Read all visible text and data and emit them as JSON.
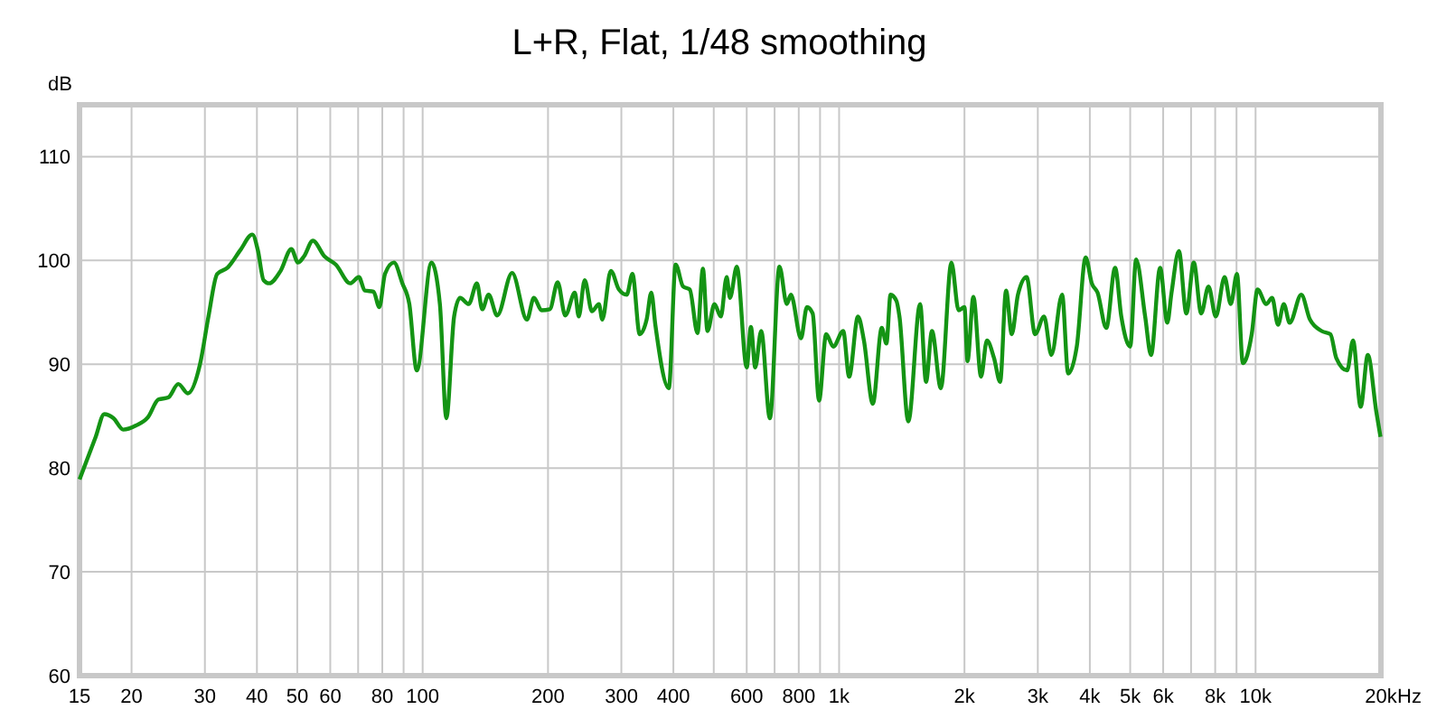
{
  "chart_data": {
    "type": "line",
    "title": "L+R, Flat, 1/48 smoothing",
    "ylabel": "dB",
    "xlabel": "Hz",
    "log": "x",
    "grid": true,
    "marker": "none",
    "line_style": "solid",
    "xlim": [
      15,
      20000
    ],
    "ylim": [
      60,
      115
    ],
    "xticks": [
      15,
      20,
      30,
      40,
      50,
      60,
      {
        "value": 70,
        "label": null
      },
      80,
      {
        "value": 90,
        "label": null
      },
      100,
      200,
      300,
      400,
      {
        "value": 500,
        "label": null
      },
      600,
      {
        "value": 700,
        "label": null
      },
      800,
      {
        "value": 900,
        "label": null
      },
      {
        "value": 1000,
        "label": "1k"
      },
      {
        "value": 2000,
        "label": "2k"
      },
      {
        "value": 3000,
        "label": "3k"
      },
      {
        "value": 4000,
        "label": "4k"
      },
      {
        "value": 5000,
        "label": "5k"
      },
      {
        "value": 6000,
        "label": "6k"
      },
      {
        "value": 7000,
        "label": null
      },
      {
        "value": 8000,
        "label": "8k"
      },
      {
        "value": 9000,
        "label": null
      },
      {
        "value": 10000,
        "label": "10k"
      },
      {
        "value": 20000,
        "label": "20k"
      }
    ],
    "yticks": [
      60,
      70,
      80,
      90,
      100,
      110
    ],
    "series": [
      {
        "color": "#149414",
        "x": [
          15,
          16.4,
          17.2,
          18.1,
          19.1,
          20.5,
          21.9,
          23.2,
          24.5,
          25.9,
          27.3,
          29.2,
          30.6,
          32.1,
          34,
          36.5,
          39,
          40.2,
          41.5,
          42.8,
          45.6,
          48.4,
          50.2,
          51.9,
          54.5,
          58.1,
          61.9,
          67,
          70.3,
          72.6,
          76.2,
          78.7,
          81.2,
          85.3,
          89.4,
          92.9,
          96.8,
          105,
          110,
          114,
          119,
          123,
          129,
          135,
          139,
          144,
          151,
          164,
          178,
          185,
          193,
          202,
          211,
          220,
          232,
          237,
          245,
          255,
          265,
          270,
          283,
          296,
          309,
          319,
          332,
          345,
          354,
          362,
          390,
          405,
          422,
          438,
          457,
          471,
          483,
          502,
          520,
          537,
          547,
          568,
          600,
          614,
          629,
          650,
          682,
          719,
          749,
          766,
          810,
          837,
          864,
          895,
          931,
          968,
          1023,
          1057,
          1110,
          1147,
          1205,
          1266,
          1299,
          1329,
          1373,
          1396,
          1466,
          1565,
          1617,
          1671,
          1755,
          1861,
          1936,
          2000,
          2034,
          2101,
          2192,
          2264,
          2355,
          2436,
          2517,
          2598,
          2688,
          2820,
          2955,
          3106,
          3234,
          3432,
          3548,
          3721,
          3909,
          4043,
          4175,
          4381,
          4600,
          4760,
          5000,
          5166,
          5431,
          5610,
          5899,
          6138,
          6284,
          6545,
          6821,
          7107,
          7403,
          7710,
          8027,
          8426,
          8719,
          9023,
          9322,
          9790,
          10110,
          10613,
          10961,
          11320,
          11691,
          12074,
          12877,
          13510,
          14412,
          15130,
          15625,
          16596,
          17138,
          17880,
          18602,
          19500,
          19950
        ],
        "values": [
          78.9,
          83,
          85.2,
          84.8,
          83.7,
          84.1,
          84.9,
          86.6,
          86.8,
          88.1,
          87.2,
          90,
          94.6,
          98.7,
          99.3,
          101,
          102.5,
          101,
          98.1,
          97.8,
          99,
          101.1,
          99.8,
          100.4,
          101.9,
          100.4,
          99.6,
          97.8,
          98.4,
          97.1,
          97,
          95.5,
          98.7,
          99.8,
          97.8,
          95.8,
          89.4,
          99.8,
          95.8,
          84.8,
          94.6,
          96.4,
          95.8,
          97.8,
          95.3,
          96.7,
          94.7,
          98.8,
          94.3,
          96.4,
          95.2,
          95.3,
          97.9,
          94.7,
          96.9,
          94.6,
          98.1,
          95.1,
          95.8,
          94.3,
          99,
          97.2,
          96.7,
          98.7,
          92.9,
          94.3,
          96.9,
          93.8,
          87.7,
          99.6,
          97.5,
          97.2,
          93,
          99.2,
          93.2,
          95.8,
          94.6,
          98.4,
          96.4,
          99.4,
          89.7,
          93.6,
          89.7,
          93.2,
          84.8,
          99.4,
          95.8,
          96.7,
          92.5,
          95.5,
          94.9,
          86.5,
          92.9,
          91.7,
          93.2,
          88.8,
          94.6,
          92.3,
          86.2,
          93.5,
          92,
          96.7,
          96.1,
          94.6,
          84.5,
          95.8,
          88.3,
          93.2,
          87.7,
          99.8,
          95.2,
          95.5,
          90.3,
          96.5,
          88.8,
          92.3,
          90.6,
          88.3,
          97.1,
          92.9,
          96.7,
          98.4,
          92.9,
          94.6,
          90.9,
          96.7,
          89.1,
          91.7,
          100.3,
          97.8,
          96.9,
          93.5,
          99.3,
          94.6,
          91.7,
          100.1,
          94.6,
          90.9,
          99.3,
          94,
          96.9,
          100.9,
          94.9,
          99.8,
          94.9,
          97.5,
          94.6,
          98.4,
          95.8,
          98.7,
          90.1,
          92.9,
          97.2,
          95.8,
          96.4,
          93.8,
          95.8,
          94,
          96.7,
          94.3,
          93.2,
          92.9,
          90.6,
          89.4,
          92.3,
          85.9,
          90.9,
          85.4,
          83
        ]
      }
    ]
  }
}
